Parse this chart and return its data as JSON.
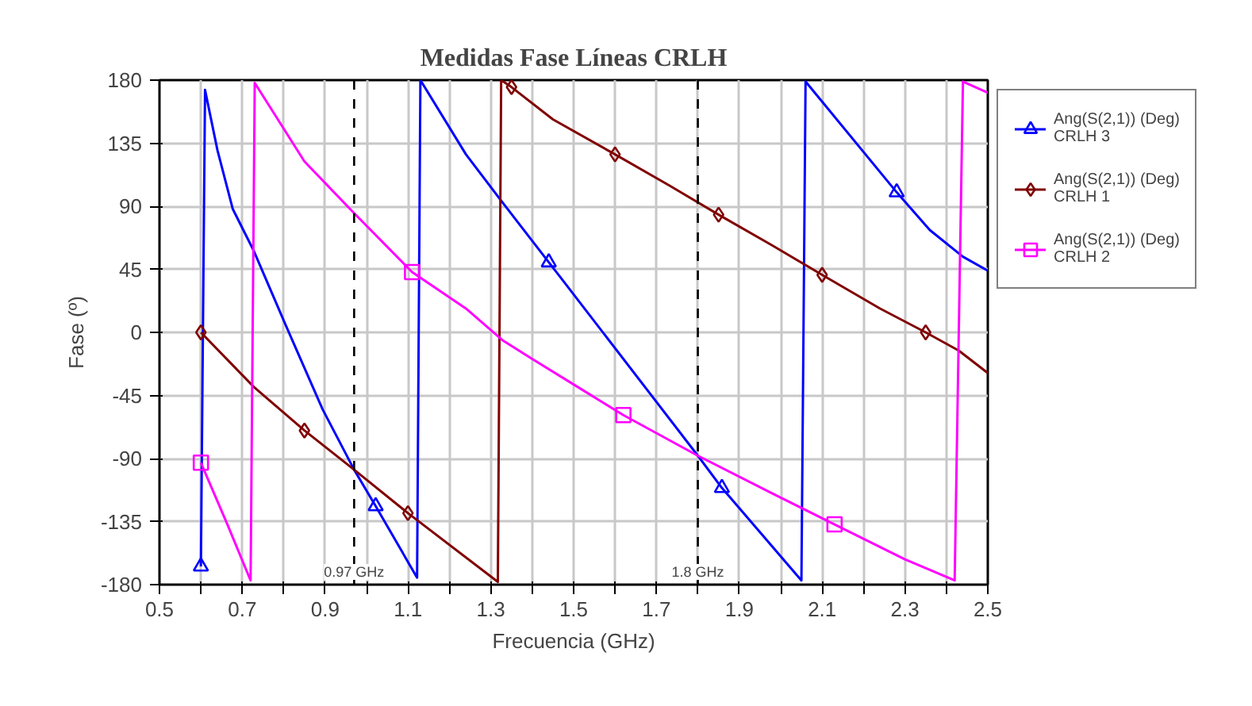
{
  "chart_data": {
    "type": "line",
    "title": "Medidas Fase Líneas CRLH",
    "xlabel": "Frecuencia (GHz)",
    "ylabel": "Fase (º)",
    "xlim": [
      0.5,
      2.5
    ],
    "ylim": [
      -180,
      180
    ],
    "xticks": [
      0.5,
      {
        "value": 0.6,
        "label": null
      },
      0.7,
      {
        "value": 0.8,
        "label": null
      },
      0.9,
      {
        "value": 1.0,
        "label": null
      },
      1.1,
      {
        "value": 1.2,
        "label": null
      },
      1.3,
      {
        "value": 1.4,
        "label": null
      },
      1.5,
      {
        "value": 1.6,
        "label": null
      },
      1.7,
      {
        "value": 1.8,
        "label": null
      },
      1.9,
      {
        "value": 2.0,
        "label": null
      },
      2.1,
      {
        "value": 2.2,
        "label": null
      },
      2.3,
      {
        "value": 2.4,
        "label": null
      },
      2.5
    ],
    "yticks": [
      -180,
      -135,
      -90,
      -45,
      0,
      45,
      90,
      135,
      180
    ],
    "grid": true,
    "legend": "right",
    "line_style": "solid",
    "series": [
      {
        "name": "Ang(S(2,1)) (Deg)\nCRLH 3",
        "color": "#0000ff",
        "x": [
          0.6,
          0.61,
          0.64,
          0.677,
          0.728,
          0.805,
          0.894,
          0.97,
          1.022,
          1.122,
          1.13,
          1.24,
          1.33,
          1.44,
          1.469,
          1.8,
          1.858,
          2.05,
          2.06,
          2.28,
          2.36,
          2.44,
          2.5
        ],
        "values": [
          -167,
          173,
          130,
          88,
          58,
          5,
          -55,
          -98,
          -124,
          -175,
          180,
          127,
          92,
          50,
          39,
          -88,
          -111,
          -177,
          179,
          100,
          73,
          54,
          44
        ]
      },
      {
        "type": "scatter",
        "marker": "triangle",
        "color": "#0000ff",
        "x": [
          0.6,
          1.022,
          1.44,
          1.858,
          2.28
        ],
        "values": [
          -167,
          -124,
          50,
          -111,
          100
        ]
      },
      {
        "name": "Ang(S(2,1)) (Deg)\nCRLH 1",
        "color": "#800000",
        "x": [
          0.6,
          0.728,
          0.85,
          0.97,
          1.1,
          1.317,
          1.325,
          1.35,
          1.45,
          1.6,
          1.73,
          1.85,
          1.98,
          2.1,
          2.24,
          2.35,
          2.43,
          2.5
        ],
        "values": [
          0,
          -39,
          -70,
          -98,
          -129,
          -178,
          180,
          175,
          152,
          127,
          105,
          84,
          62,
          41,
          17,
          0,
          -13,
          -29
        ]
      },
      {
        "type": "scatter",
        "marker": "diamond",
        "color": "#800000",
        "x": [
          0.6,
          0.85,
          1.1,
          1.35,
          1.6,
          1.85,
          2.1,
          2.35
        ],
        "values": [
          0,
          -70,
          -129,
          175,
          127,
          84,
          41,
          0
        ]
      },
      {
        "name": "Ang(S(2,1)) (Deg)\nCRLH 2",
        "color": "#ff00ff",
        "x": [
          0.6,
          0.664,
          0.72,
          0.73,
          0.85,
          0.97,
          1.11,
          1.24,
          1.33,
          1.4,
          1.51,
          1.62,
          1.8,
          1.98,
          2.13,
          2.3,
          2.42,
          2.44,
          2.5
        ],
        "values": [
          -93,
          -137,
          -177,
          178,
          122,
          85,
          43,
          17,
          -6,
          -19,
          -39,
          -59,
          -88,
          -115,
          -137,
          -162,
          -177,
          179,
          171
        ]
      },
      {
        "type": "scatter",
        "marker": "square",
        "color": "#ff00ff",
        "x": [
          0.6,
          1.11,
          1.62,
          2.13
        ],
        "values": [
          -93,
          43,
          -59,
          -137
        ]
      }
    ],
    "ref_lines": [
      {
        "axis": "x",
        "value": 0.97,
        "label": "0.97 GHz",
        "color": "#000000",
        "line_style": "dashed"
      },
      {
        "axis": "x",
        "value": 1.8,
        "label": "1.8 GHz",
        "color": "#000000",
        "line_style": "dashed"
      }
    ]
  }
}
